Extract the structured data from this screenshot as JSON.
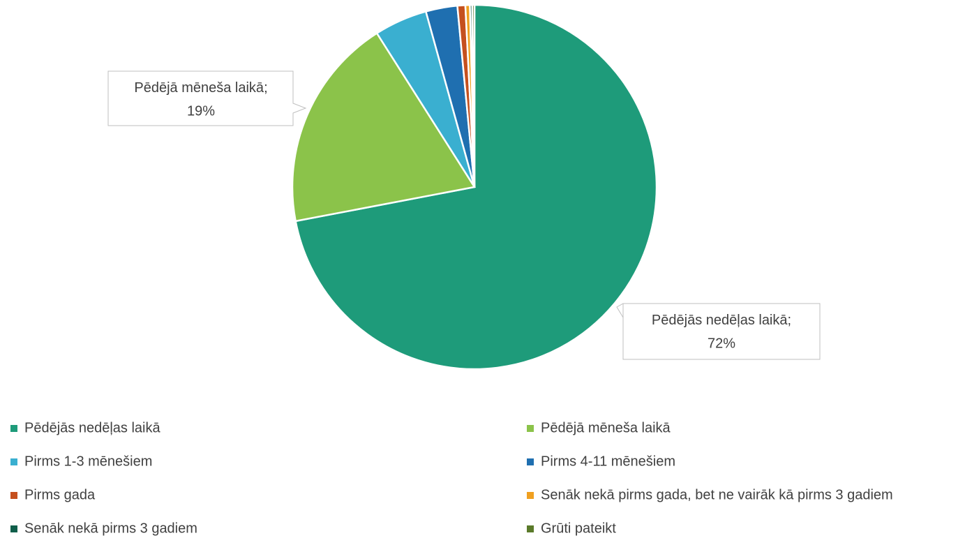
{
  "chart_data": {
    "type": "pie",
    "categories": [
      "Pēdējās nedēļas laikā",
      "Pēdējā mēneša laikā",
      "Pirms 1-3 mēnešiem",
      "Pirms 4-11 mēnešiem",
      "Pirms gada",
      "Senāk nekā pirms gada, bet ne vairāk kā pirms 3 gadiem",
      "Senāk nekā pirms 3 gadiem",
      "Grūti pateikt"
    ],
    "values": [
      72,
      19,
      4.7,
      2.8,
      0.7,
      0.4,
      0.2,
      0.2
    ],
    "value_labels": [
      "72%",
      "19%",
      null,
      null,
      null,
      null,
      null,
      null
    ],
    "label_separator": ";",
    "colors": [
      "#1e9b7a",
      "#8bc34a",
      "#3aafd0",
      "#1f6fb0",
      "#c5501e",
      "#f0a020",
      "#0f5e4a",
      "#5a7a2a"
    ],
    "legend": "bottom"
  }
}
